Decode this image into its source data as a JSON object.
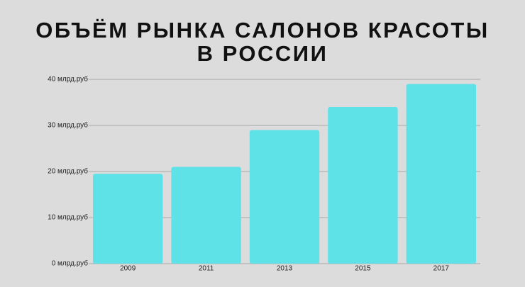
{
  "chart_data": {
    "type": "bar",
    "title": [
      "ОБЪЁМ РЫНКА САЛОНОВ КРАСОТЫ",
      "В РОССИИ"
    ],
    "categories": [
      "2009",
      "2011",
      "2013",
      "2015",
      "2017"
    ],
    "values": [
      19.5,
      21,
      29,
      34,
      39
    ],
    "color": "#5fe1e8",
    "ylim": [
      0,
      40
    ],
    "yticks": [
      {
        "value": 0,
        "label": "0 млрд.руб"
      },
      {
        "value": 10,
        "label": "10 млрд.руб"
      },
      {
        "value": 20,
        "label": "20 млрд.руб"
      },
      {
        "value": 30,
        "label": "30 млрд.руб"
      },
      {
        "value": 40,
        "label": "40 млрд.руб"
      }
    ],
    "grid": true
  }
}
